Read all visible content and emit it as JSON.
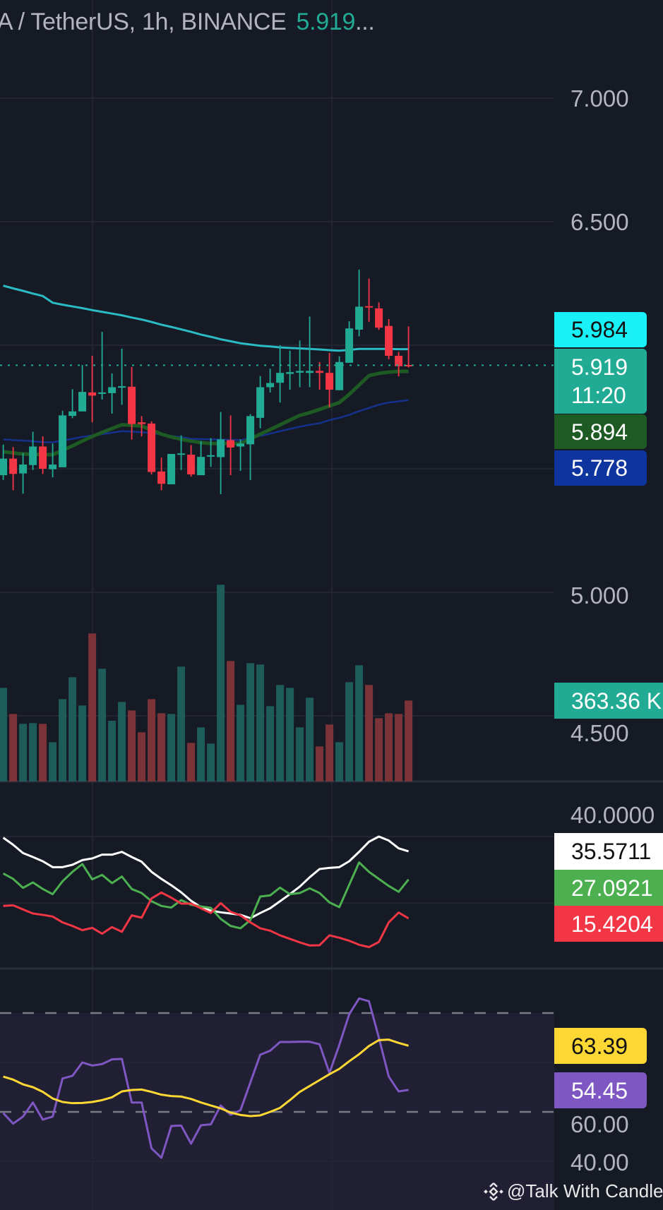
{
  "header": {
    "symbol": "A / TetherUS, 1h, BINANCE",
    "last_price": "5.919",
    "ellipsis": "..."
  },
  "price_axis": {
    "labels": [
      "7.000",
      "6.500",
      "5.000",
      "4.500"
    ]
  },
  "price_tags": {
    "ma_cyan": "5.984",
    "last": "5.919",
    "countdown": "11:20",
    "ma_green": "5.894",
    "ma_navy": "5.778",
    "volume": "363.36 K"
  },
  "dmi_axis": {
    "label": "40.0000"
  },
  "dmi_tags": {
    "adx": "35.5711",
    "plus_di": "27.0921",
    "minus_di": "15.4204"
  },
  "rsi_axis": {
    "labels": [
      "60.00",
      "40.00"
    ]
  },
  "rsi_tags": {
    "rsi_ma": "63.39",
    "rsi": "54.45"
  },
  "watermark": {
    "text": "@Talk With Candle",
    "logo": "binance-logo-icon"
  },
  "colors": {
    "background": "#161a25",
    "grid": "#232632",
    "up": "#22ab94",
    "down": "#f23645",
    "vol_up": "#1e5c5a",
    "vol_down": "#7b3338",
    "ma_cyan": "#2bbbc4",
    "ma_green": "#1e5a23",
    "ma_navy": "#14318c",
    "adx": "#ffffff",
    "plus_di": "#4caf50",
    "minus_di": "#f23645",
    "rsi": "#7e57c2",
    "rsi_ma": "#fdd835",
    "rsi_band": "#211f33"
  },
  "chart_data": [
    {
      "type": "candlestick",
      "title": "A / TetherUS, 1h, BINANCE",
      "ylim": [
        4.3,
        7.4
      ],
      "y_ticks": [
        7.0,
        6.5,
        5.0,
        4.5
      ],
      "grid": true,
      "ohlc": [
        [
          5.474,
          5.598,
          5.455,
          5.541
        ],
        [
          5.541,
          5.588,
          5.413,
          5.479
        ],
        [
          5.481,
          5.564,
          5.399,
          5.517
        ],
        [
          5.515,
          5.65,
          5.495,
          5.59
        ],
        [
          5.59,
          5.631,
          5.479,
          5.5
        ],
        [
          5.498,
          5.602,
          5.465,
          5.517
        ],
        [
          5.506,
          5.735,
          5.506,
          5.716
        ],
        [
          5.714,
          5.822,
          5.705,
          5.732
        ],
        [
          5.732,
          5.92,
          5.732,
          5.811
        ],
        [
          5.809,
          5.957,
          5.688,
          5.796
        ],
        [
          5.803,
          6.054,
          5.78,
          5.809
        ],
        [
          5.806,
          5.886,
          5.723,
          5.83
        ],
        [
          5.828,
          5.986,
          5.759,
          5.834
        ],
        [
          5.832,
          5.912,
          5.618,
          5.681
        ],
        [
          5.688,
          5.713,
          5.631,
          5.681
        ],
        [
          5.683,
          5.692,
          5.477,
          5.487
        ],
        [
          5.489,
          5.545,
          5.413,
          5.439
        ],
        [
          5.437,
          5.56,
          5.437,
          5.56
        ],
        [
          5.557,
          5.635,
          5.495,
          5.562
        ],
        [
          5.557,
          5.596,
          5.468,
          5.477
        ],
        [
          5.474,
          5.612,
          5.474,
          5.548
        ],
        [
          5.549,
          5.624,
          5.508,
          5.555
        ],
        [
          5.547,
          5.73,
          5.397,
          5.619
        ],
        [
          5.616,
          5.716,
          5.474,
          5.586
        ],
        [
          5.59,
          5.619,
          5.491,
          5.602
        ],
        [
          5.599,
          5.721,
          5.454,
          5.713
        ],
        [
          5.706,
          5.875,
          5.664,
          5.83
        ],
        [
          5.83,
          5.905,
          5.809,
          5.847
        ],
        [
          5.848,
          6.0,
          5.768,
          5.888
        ],
        [
          5.884,
          5.978,
          5.82,
          5.891
        ],
        [
          5.889,
          6.019,
          5.83,
          5.896
        ],
        [
          5.888,
          6.116,
          5.83,
          5.896
        ],
        [
          5.896,
          5.932,
          5.82,
          5.888
        ],
        [
          5.888,
          5.969,
          5.749,
          5.82
        ],
        [
          5.818,
          5.955,
          5.818,
          5.932
        ],
        [
          5.929,
          6.097,
          5.929,
          6.068
        ],
        [
          6.063,
          6.306,
          6.036,
          6.156
        ],
        [
          6.158,
          6.27,
          6.095,
          6.153
        ],
        [
          6.149,
          6.173,
          6.062,
          6.071
        ],
        [
          6.078,
          6.106,
          5.943,
          5.957
        ],
        [
          5.957,
          5.973,
          5.874,
          5.915
        ],
        [
          5.92,
          6.076,
          5.91,
          5.919
        ]
      ],
      "moving_averages": [
        {
          "color": "#2bbbc4",
          "last": 5.984,
          "values": [
            6.241,
            6.23,
            6.22,
            6.209,
            6.199,
            6.172,
            6.164,
            6.157,
            6.15,
            6.142,
            6.135,
            6.128,
            6.121,
            6.112,
            6.104,
            6.094,
            6.083,
            6.074,
            6.064,
            6.054,
            6.043,
            6.034,
            6.024,
            6.016,
            6.008,
            6.003,
            5.998,
            5.995,
            5.991,
            5.989,
            5.987,
            5.985,
            5.983,
            5.98,
            5.978,
            5.981,
            5.985,
            5.985,
            5.985,
            5.985,
            5.984,
            5.984
          ]
        },
        {
          "color": "#1e5a23",
          "last": 5.894,
          "values": [
            5.569,
            5.564,
            5.56,
            5.559,
            5.557,
            5.557,
            5.574,
            5.593,
            5.612,
            5.631,
            5.647,
            5.663,
            5.678,
            5.676,
            5.673,
            5.657,
            5.64,
            5.629,
            5.619,
            5.612,
            5.606,
            5.602,
            5.602,
            5.602,
            5.602,
            5.621,
            5.64,
            5.659,
            5.678,
            5.697,
            5.716,
            5.727,
            5.74,
            5.754,
            5.768,
            5.801,
            5.839,
            5.877,
            5.886,
            5.891,
            5.894,
            5.894
          ]
        },
        {
          "color": "#14318c",
          "last": 5.778,
          "values": [
            5.619,
            5.616,
            5.614,
            5.611,
            5.608,
            5.607,
            5.614,
            5.621,
            5.629,
            5.635,
            5.64,
            5.646,
            5.652,
            5.65,
            5.648,
            5.645,
            5.638,
            5.633,
            5.628,
            5.621,
            5.62,
            5.619,
            5.618,
            5.617,
            5.616,
            5.624,
            5.633,
            5.642,
            5.652,
            5.661,
            5.67,
            5.678,
            5.684,
            5.697,
            5.706,
            5.718,
            5.733,
            5.746,
            5.759,
            5.768,
            5.773,
            5.778
          ]
        }
      ]
    },
    {
      "type": "bar",
      "unit": "K",
      "last": 363.36,
      "values": [
        420.4,
        303.2,
        258.8,
        262.0,
        258.8,
        176.4,
        369.7,
        467.9,
        341.2,
        664.4,
        506.0,
        272.5,
        357.0,
        319.0,
        220.8,
        369.7,
        306.3,
        303.2,
        515.5,
        173.2,
        243.0,
        170.1,
        883.1,
        540.8,
        344.4,
        531.3,
        525.0,
        338.0,
        433.1,
        420.4,
        243.0,
        376.0,
        157.4,
        255.6,
        176.4,
        445.8,
        521.8,
        433.1,
        284.1,
        306.3,
        303.2,
        363.36
      ]
    },
    {
      "type": "line",
      "y_ticks": [
        40,
        20
      ],
      "grid": true,
      "series": [
        {
          "color": "#ffffff",
          "values": [
            39.65,
            37.53,
            35.05,
            33.85,
            32.58,
            30.81,
            30.81,
            31.52,
            32.93,
            33.43,
            34.56,
            34.56,
            35.41,
            33.85,
            32.44,
            29.4,
            27.28,
            25.37,
            23.25,
            20.71,
            18.8,
            17.74,
            17.24,
            16.89,
            16.47,
            15.48,
            17.03,
            18.45,
            20.57,
            22.69,
            24.95,
            27.77,
            30.25,
            30.6,
            30.81,
            32.58,
            35.41,
            38.45,
            40.0,
            38.8,
            36.47,
            35.5711
          ]
        },
        {
          "color": "#4caf50",
          "values": [
            28.9,
            27.28,
            24.59,
            26.22,
            24.24,
            22.69,
            26.57,
            29.4,
            31.73,
            27.14,
            28.48,
            26.01,
            27.99,
            24.24,
            23.04,
            20.57,
            19.15,
            18.66,
            20.92,
            19.51,
            19.01,
            18.59,
            15.26,
            13.14,
            12.44,
            14.91,
            21.98,
            22.33,
            24.66,
            22.69,
            23.04,
            24.45,
            23.04,
            20.21,
            18.8,
            25.51,
            32.23,
            29.4,
            27.28,
            25.16,
            23.39,
            27.0921
          ]
        },
        {
          "color": "#f23645",
          "values": [
            19.15,
            19.36,
            18.09,
            16.89,
            16.47,
            15.97,
            14.21,
            13.14,
            11.87,
            12.58,
            10.81,
            12.79,
            11.38,
            16.33,
            15.62,
            21.41,
            23.18,
            21.63,
            19.86,
            19.86,
            18.45,
            17.03,
            20.0,
            17.39,
            16.33,
            14.21,
            12.44,
            11.73,
            10.32,
            9.26,
            8.2,
            7.28,
            7.35,
            10.32,
            9.61,
            8.69,
            7.49,
            6.78,
            8.34,
            14.21,
            17.17,
            15.4204
          ]
        }
      ]
    },
    {
      "type": "line",
      "y_ticks": [
        60,
        40
      ],
      "band": [
        30,
        70
      ],
      "dashed_levels": [
        70,
        50
      ],
      "series": [
        {
          "color": "#7e57c2",
          "values": [
            49.76,
            47.62,
            49.05,
            51.9,
            48.43,
            49.05,
            56.76,
            57.29,
            60.0,
            59.38,
            59.67,
            60.62,
            60.71,
            51.9,
            51.9,
            42.62,
            40.71,
            47.14,
            47.24,
            43.57,
            47.29,
            47.48,
            51.29,
            49.43,
            50.33,
            55.95,
            61.57,
            62.38,
            64.14,
            64.14,
            64.19,
            64.19,
            63.67,
            57.86,
            63.57,
            69.76,
            72.95,
            72.38,
            65.0,
            57.14,
            54.14,
            54.45
          ]
        },
        {
          "color": "#fdd835",
          "values": [
            57.14,
            56.52,
            55.57,
            55.0,
            54.05,
            52.71,
            52.0,
            51.76,
            51.81,
            52.0,
            52.38,
            52.95,
            54.14,
            54.43,
            54.52,
            54.05,
            53.48,
            53.19,
            53.1,
            52.62,
            51.9,
            51.29,
            50.71,
            49.86,
            49.38,
            49.14,
            49.29,
            50.0,
            50.81,
            52.38,
            54.05,
            55.24,
            56.43,
            57.62,
            58.71,
            60.24,
            61.67,
            63.33,
            64.52,
            64.62,
            63.95,
            63.39
          ]
        }
      ]
    }
  ]
}
